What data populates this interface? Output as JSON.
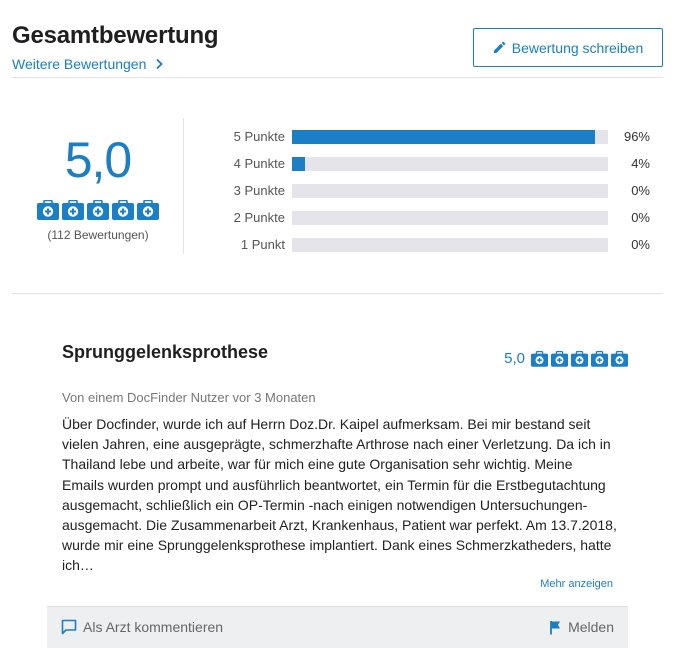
{
  "header": {
    "title": "Gesamtbewertung",
    "more_link": "Weitere Bewertungen",
    "write_button": "Bewertung schreiben"
  },
  "summary": {
    "score": "5,0",
    "count": "(112 Bewertungen)",
    "distribution": [
      {
        "label": "5 Punkte",
        "percent": 96,
        "percent_text": "96%"
      },
      {
        "label": "4 Punkte",
        "percent": 4,
        "percent_text": "4%"
      },
      {
        "label": "3 Punkte",
        "percent": 0,
        "percent_text": "0%"
      },
      {
        "label": "2 Punkte",
        "percent": 0,
        "percent_text": "0%"
      },
      {
        "label": "1 Punkt",
        "percent": 0,
        "percent_text": "0%"
      }
    ]
  },
  "review": {
    "title": "Sprunggelenksprothese",
    "score": "5,0",
    "meta": "Von einem DocFinder Nutzer vor 3 Monaten",
    "text": "Über Docfinder, wurde ich auf Herrn Doz.Dr. Kaipel aufmerksam. Bei mir bestand seit vielen Jahren, eine ausgeprägte, schmerzhafte Arthrose nach einer Verletzung. Da ich in Thailand lebe und arbeite, war für mich eine gute Organisation sehr wichtig. Meine Emails wurden prompt und ausführlich beantwortet, ein Termin für die Erstbegutachtung ausgemacht, schließlich ein OP-Termin -nach einigen notwendigen Untersuchungen- ausgemacht. Die Zusammenarbeit Arzt, Krankenhaus, Patient war perfekt. Am 13.7.2018, wurde mir eine Sprunggelenksprothese implantiert. Dank eines Schmerzkatheders, hatte ich…",
    "show_more": "Mehr anzeigen",
    "comment_button": "Als Arzt kommentieren",
    "report_button": "Melden"
  },
  "colors": {
    "accent": "#1a7fc4",
    "bar_track": "#e4e4ea",
    "footer_bg": "#eeeff1"
  },
  "icons": {
    "rating": "medical-bag-icon",
    "edit": "pencil-icon",
    "chevron": "chevron-right-icon",
    "comment": "speech-bubble-icon",
    "report": "flag-icon"
  }
}
